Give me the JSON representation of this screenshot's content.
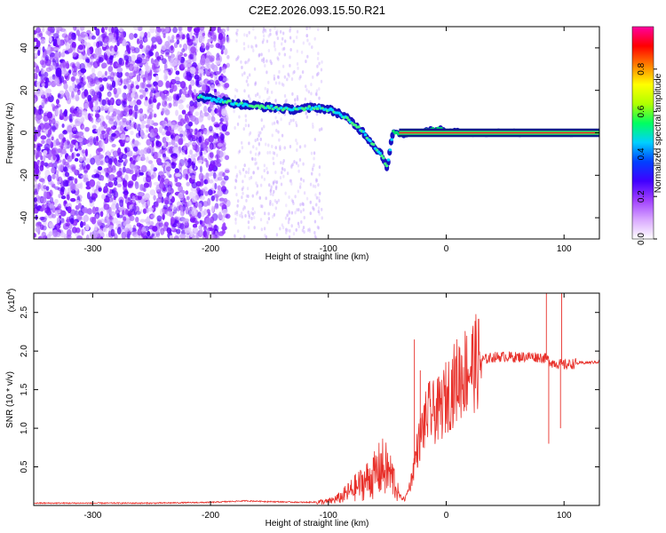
{
  "chart_data": [
    {
      "type": "heatmap",
      "title": "C2E2.2026.093.15.50.R21",
      "xlabel": "Height of straight line (km)",
      "ylabel": "Frequency (Hz)",
      "xlim": [
        -350,
        130
      ],
      "ylim": [
        -50,
        50
      ],
      "xticks": [
        -300,
        -200,
        -100,
        0,
        100
      ],
      "yticks": [
        -40,
        -20,
        0,
        20,
        40
      ],
      "colorbar": {
        "label": "Normalized spectral amplitude",
        "range": [
          0,
          1
        ],
        "ticks": [
          "0.0",
          "0.2",
          "0.4",
          "0.6",
          "0.8"
        ],
        "colormap": [
          "#ffffff",
          "#d9a8ff",
          "#a040ff",
          "#4000ff",
          "#0040ff",
          "#00d0ff",
          "#00ff60",
          "#b0ff00",
          "#ffff00",
          "#ff8000",
          "#ff0000",
          "#ff00a0"
        ]
      },
      "ridge": {
        "description": "frequency of the dominant spectral line vs height",
        "x": [
          -210,
          -190,
          -170,
          -150,
          -130,
          -110,
          -100,
          -90,
          -80,
          -70,
          -60,
          -55,
          -50,
          -45,
          -40,
          -30,
          -20,
          -10,
          0,
          20,
          40,
          60,
          80,
          100,
          130
        ],
        "y": [
          17,
          15,
          13,
          12,
          11,
          12,
          11,
          9,
          5,
          0,
          -7,
          -10,
          -16,
          1,
          -1,
          0,
          1,
          2,
          1,
          0,
          0,
          0,
          0,
          0,
          0
        ]
      },
      "noise_region": [
        -350,
        -185
      ]
    },
    {
      "type": "line",
      "xlabel": "Height of straight line (km)",
      "ylabel": "SNR (10 * v/v)",
      "y_multiplier": "(x10",
      "y_multiplier_exp": "4",
      "y_multiplier_close": ")",
      "xlim": [
        -350,
        130
      ],
      "ylim": [
        0,
        2.75
      ],
      "xticks": [
        -300,
        -200,
        -100,
        0,
        100
      ],
      "yticks": [
        0.5,
        1.0,
        1.5,
        2.0,
        2.5
      ],
      "ytick_labels": [
        "0.5",
        "1.0",
        "1.5",
        "2.0",
        "2.5"
      ],
      "color": "#e8302a",
      "series": [
        {
          "name": "SNR",
          "x": [
            -350,
            -300,
            -250,
            -200,
            -170,
            -150,
            -120,
            -100,
            -90,
            -80,
            -70,
            -60,
            -55,
            -50,
            -45,
            -40,
            -35,
            -30,
            -25,
            -20,
            -15,
            -10,
            -5,
            0,
            10,
            20,
            30,
            40,
            50,
            60,
            70,
            80,
            85,
            90,
            100,
            110,
            130
          ],
          "y": [
            0.03,
            0.03,
            0.03,
            0.04,
            0.06,
            0.05,
            0.04,
            0.05,
            0.1,
            0.2,
            0.3,
            0.4,
            0.5,
            0.45,
            0.35,
            0.12,
            0.08,
            0.3,
            0.7,
            1.0,
            1.2,
            1.2,
            1.25,
            1.4,
            1.65,
            1.8,
            1.88,
            1.92,
            1.93,
            1.92,
            1.93,
            1.92,
            1.9,
            1.85,
            1.82,
            1.84,
            1.86
          ]
        }
      ],
      "spikes": [
        {
          "x": -27,
          "y": 2.15
        },
        {
          "x": -22,
          "y": 1.75
        },
        {
          "x": 85,
          "y": 2.75
        },
        {
          "x": 87,
          "y": 0.8
        },
        {
          "x": 98,
          "y": 2.75
        },
        {
          "x": 97,
          "y": 1.0
        }
      ]
    }
  ]
}
